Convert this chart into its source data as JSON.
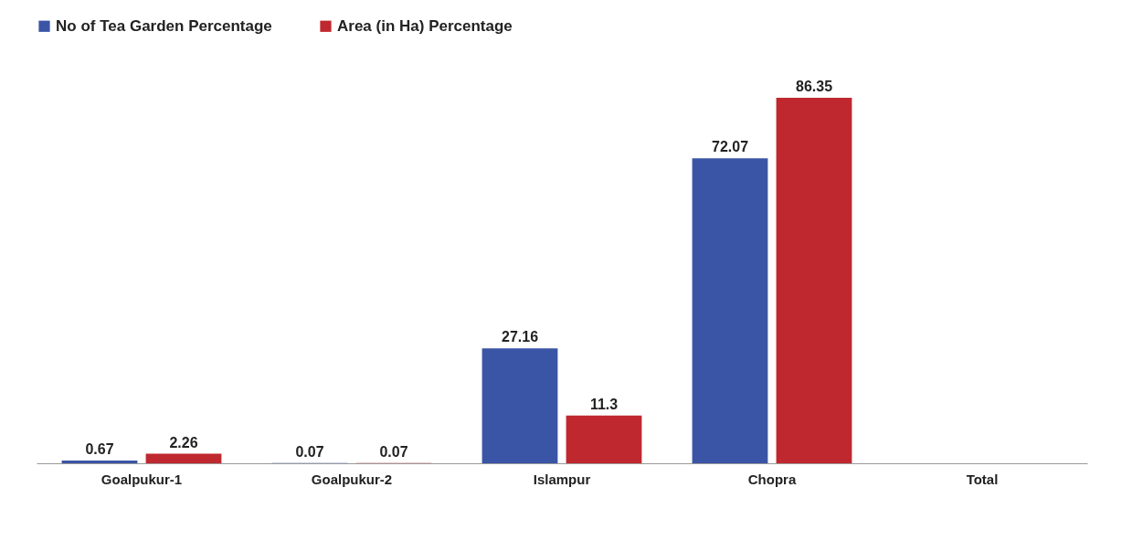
{
  "chart_data": {
    "type": "bar",
    "categories": [
      "Goalpukur-1",
      "Goalpukur-2",
      "Islampur",
      "Chopra",
      "Total"
    ],
    "series": [
      {
        "name": "No of Tea Garden Percentage",
        "color": "#3a55a6",
        "values": [
          0.67,
          0.07,
          27.16,
          72.07,
          null
        ]
      },
      {
        "name": "Area (in Ha) Percentage",
        "color": "#c0282f",
        "values": [
          2.26,
          0.07,
          11.3,
          86.35,
          null
        ]
      }
    ],
    "data_labels": true,
    "legend": "top",
    "grid": false
  }
}
